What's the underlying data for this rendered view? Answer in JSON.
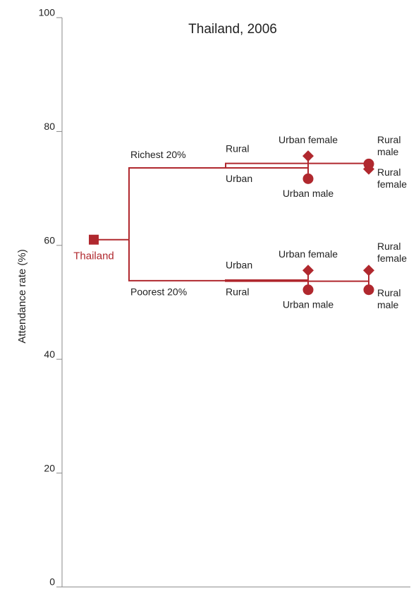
{
  "chart_data": {
    "type": "tree",
    "title": "Thailand, 2006",
    "y_label": "Attendance rate (%)",
    "ylim": [
      0,
      100
    ],
    "yticks": [
      0,
      20,
      40,
      60,
      80,
      100
    ],
    "color": "#b0282e",
    "root": {
      "label": "Thailand",
      "value": 61
    },
    "branches": [
      {
        "label": "Richest 20%",
        "value": 73.6,
        "subs": [
          {
            "label": "Urban",
            "value": 73.6,
            "leaves": [
              {
                "label": "Urban female",
                "value": 75.7,
                "shape": "diamond"
              },
              {
                "label": "Urban male",
                "value": 71.7,
                "shape": "circle"
              }
            ]
          },
          {
            "label": "Rural",
            "value": 74.4,
            "leaves": [
              {
                "label": "Rural male",
                "value": 74.3,
                "shape": "circle"
              },
              {
                "label": "Rural female",
                "value": 73.4,
                "shape": "diamond"
              }
            ]
          }
        ]
      },
      {
        "label": "Poorest 20%",
        "value": 53.8,
        "subs": [
          {
            "label": "Urban",
            "value": 53.9,
            "leaves": [
              {
                "label": "Urban female",
                "value": 55.6,
                "shape": "diamond"
              },
              {
                "label": "Urban male",
                "value": 52.2,
                "shape": "circle"
              }
            ]
          },
          {
            "label": "Rural",
            "value": 53.7,
            "leaves": [
              {
                "label": "Rural female",
                "value": 55.6,
                "shape": "diamond"
              },
              {
                "label": "Rural male",
                "value": 52.2,
                "shape": "circle"
              }
            ]
          }
        ]
      }
    ]
  }
}
